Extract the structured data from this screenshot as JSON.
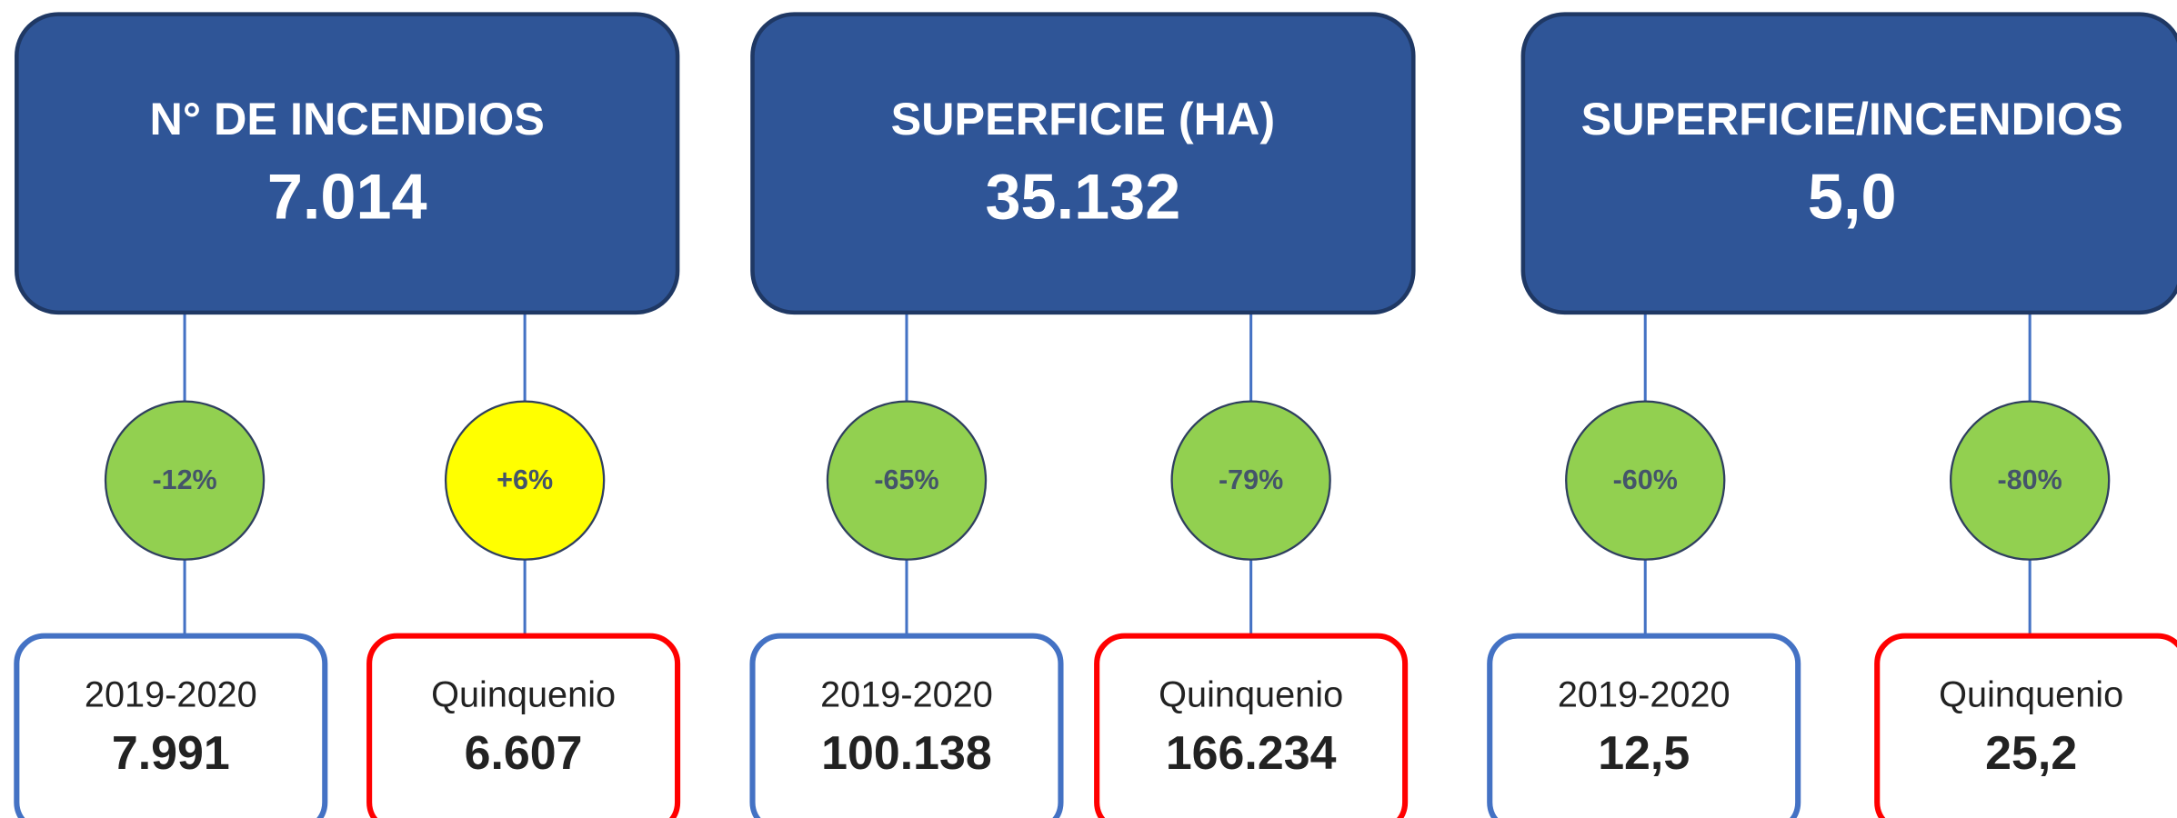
{
  "panels": [
    {
      "title": "N° DE INCENDIOS",
      "value": "7.014",
      "comparisons": [
        {
          "change": "-12%",
          "color": "#92d050",
          "label": "2019-2020",
          "value": "7.991"
        },
        {
          "change": "+6%",
          "color": "#ffff00",
          "label": "Quinquenio",
          "value": "6.607"
        }
      ]
    },
    {
      "title": "SUPERFICIE (HA)",
      "value": "35.132",
      "comparisons": [
        {
          "change": "-65%",
          "color": "#92d050",
          "label": "2019-2020",
          "value": "100.138"
        },
        {
          "change": "-79%",
          "color": "#92d050",
          "label": "Quinquenio",
          "value": "166.234"
        }
      ]
    },
    {
      "title": "SUPERFICIE/INCENDIOS",
      "value": "5,0",
      "comparisons": [
        {
          "change": "-60%",
          "color": "#92d050",
          "label": "2019-2020",
          "value": "12,5"
        },
        {
          "change": "-80%",
          "color": "#92d050",
          "label": "Quinquenio",
          "value": "25,2"
        }
      ]
    }
  ]
}
